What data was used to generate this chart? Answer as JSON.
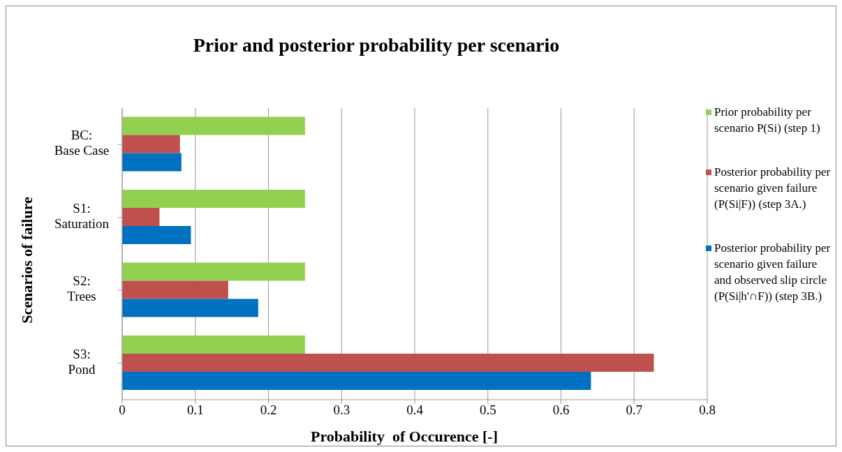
{
  "chart_data": {
    "type": "bar",
    "orientation": "horizontal",
    "title": "Prior and posterior probability per scenario",
    "xlabel": "Probability  of Occurence [-]",
    "ylabel": "Scenarios of failure",
    "categories": [
      "BC:\nBase Case",
      "S1:\nSaturation",
      "S2:\nTrees",
      "S3:\nPond"
    ],
    "series": [
      {
        "name": "Prior probability per scenario P(Si) (step 1)",
        "color": "#92d050",
        "values": [
          0.25,
          0.25,
          0.25,
          0.25
        ]
      },
      {
        "name": "Posterior probability per scenario given failure (P(Si|F)) (step 3A.)",
        "color": "#c0504d",
        "values": [
          0.079,
          0.051,
          0.145,
          0.727
        ]
      },
      {
        "name": "Posterior probability per scenario given failure and observed slip circle (P(Si|h'∩F)) (step 3B.)",
        "color": "#0070c0",
        "values": [
          0.081,
          0.094,
          0.186,
          0.641
        ]
      }
    ],
    "xlim": [
      0,
      0.8
    ],
    "xticks": [
      0,
      0.1,
      0.2,
      0.3,
      0.4,
      0.5,
      0.6,
      0.7,
      0.8
    ],
    "grid": "x",
    "legend": "right"
  }
}
